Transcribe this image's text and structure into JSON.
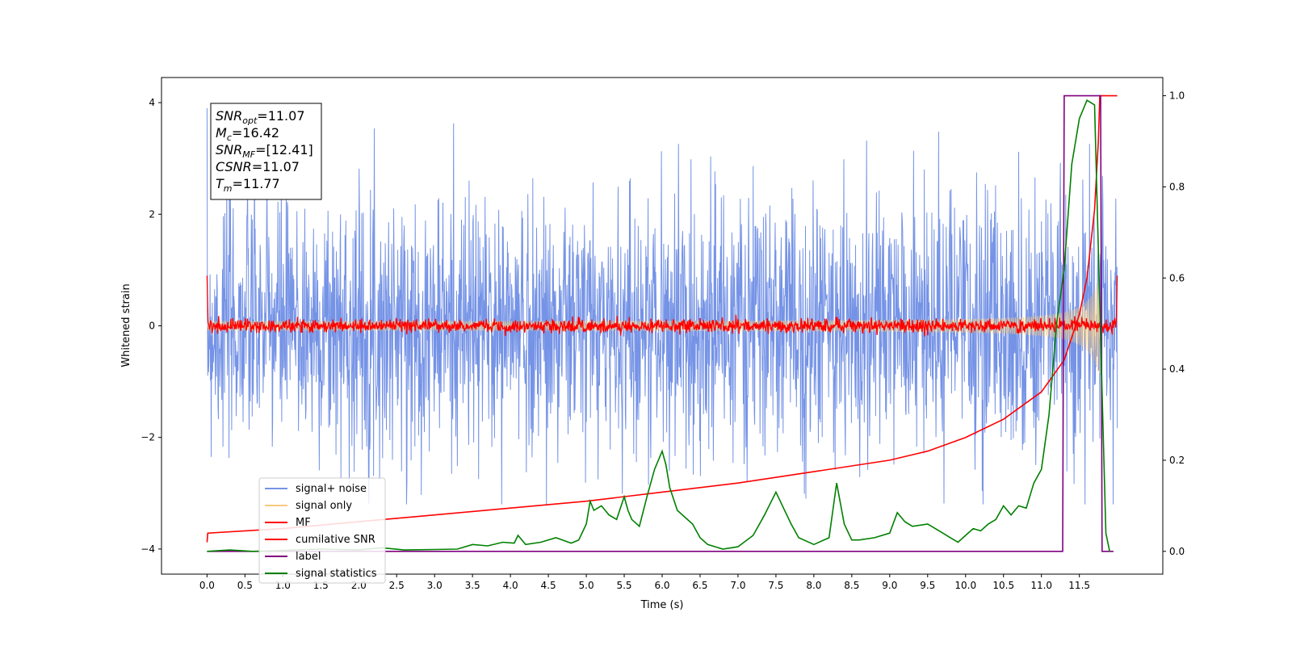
{
  "chart_data": {
    "type": "line",
    "title": "",
    "xlabel": "Time (s)",
    "ylabel": "Whitened strain",
    "xlim": [
      -0.6,
      12.6
    ],
    "ylim": [
      -4.45,
      4.45
    ],
    "y2lim": [
      -0.05,
      1.04
    ],
    "xticks": [
      0.0,
      0.5,
      1.0,
      1.5,
      2.0,
      2.5,
      3.0,
      3.5,
      4.0,
      4.5,
      5.0,
      5.5,
      6.0,
      6.5,
      7.0,
      7.5,
      8.0,
      8.5,
      9.0,
      9.5,
      10.0,
      10.5,
      11.0,
      11.5
    ],
    "xtick_labels": [
      "0.0",
      "0.5",
      "1.0",
      "1.5",
      "2.0",
      "2.5",
      "3.0",
      "3.5",
      "4.0",
      "4.5",
      "5.0",
      "5.5",
      "6.0",
      "6.5",
      "7.0",
      "7.5",
      "8.0",
      "8.5",
      "9.0",
      "9.5",
      "10.0",
      "10.5",
      "11.0",
      "11.5"
    ],
    "yticks": [
      -4,
      -2,
      0,
      2,
      4
    ],
    "ytick_labels": [
      "−4",
      "−2",
      "0",
      "2",
      "4"
    ],
    "y2ticks": [
      0.0,
      0.2,
      0.4,
      0.6,
      0.8,
      1.0
    ],
    "y2tick_labels": [
      "0.0",
      "0.2",
      "0.4",
      "0.6",
      "0.8",
      "1.0"
    ],
    "grid": false,
    "legend_position": "lower-left",
    "annotation_lines": [
      {
        "sym": "SNR",
        "sub": "opt",
        "value": "=11.07"
      },
      {
        "sym": "M",
        "sub": "c",
        "value": "=16.42"
      },
      {
        "sym": "SNR",
        "sub": "MF",
        "value": "=[12.41]"
      },
      {
        "sym": "CSNR",
        "sub": "",
        "value": "=11.07"
      },
      {
        "sym": "T",
        "sub": "m",
        "value": "=11.77"
      }
    ],
    "series": [
      {
        "name": "signal+ noise",
        "axis": "left",
        "color": "#7593e6",
        "kind": "noise-band",
        "x_range": [
          0.0,
          12.0
        ],
        "envelope": [
          -3.2,
          3.9
        ]
      },
      {
        "name": "signal only",
        "axis": "left",
        "color": "#f7c97e",
        "kind": "chirp",
        "x_range": [
          0.0,
          11.77
        ]
      },
      {
        "name": "MF",
        "axis": "left",
        "color": "#ff0000",
        "kind": "noise-band",
        "x_range": [
          0.0,
          12.0
        ],
        "envelope": [
          -0.15,
          0.2
        ]
      },
      {
        "name": "cumilative SNR",
        "axis": "right",
        "color": "#ff0000",
        "x": [
          0.0,
          0.01,
          1.0,
          2.0,
          3.0,
          4.0,
          5.0,
          6.0,
          7.0,
          8.0,
          9.0,
          9.5,
          10.0,
          10.5,
          11.0,
          11.3,
          11.5,
          11.6,
          11.7,
          11.75,
          11.77,
          11.8,
          12.0
        ],
        "y": [
          0.02,
          0.04,
          0.05,
          0.065,
          0.08,
          0.095,
          0.11,
          0.13,
          0.15,
          0.175,
          0.2,
          0.22,
          0.25,
          0.29,
          0.35,
          0.42,
          0.52,
          0.6,
          0.75,
          0.9,
          1.0,
          1.0,
          1.0
        ]
      },
      {
        "name": "label",
        "axis": "right",
        "color": "#800080",
        "x": [
          0.0,
          11.28,
          11.3,
          11.78,
          11.8,
          11.95
        ],
        "y": [
          0.0,
          0.0,
          1.0,
          1.0,
          0.0,
          0.0
        ]
      },
      {
        "name": "signal statistics",
        "axis": "right",
        "color": "#008000",
        "x": [
          0.0,
          0.3,
          0.6,
          1.0,
          1.5,
          2.0,
          2.3,
          2.6,
          3.0,
          3.3,
          3.5,
          3.7,
          3.9,
          4.05,
          4.1,
          4.2,
          4.4,
          4.6,
          4.8,
          4.9,
          5.0,
          5.05,
          5.1,
          5.2,
          5.3,
          5.4,
          5.5,
          5.55,
          5.6,
          5.7,
          5.8,
          5.9,
          6.0,
          6.05,
          6.1,
          6.2,
          6.3,
          6.4,
          6.5,
          6.6,
          6.8,
          7.0,
          7.2,
          7.35,
          7.5,
          7.6,
          7.7,
          7.8,
          8.0,
          8.2,
          8.3,
          8.4,
          8.5,
          8.6,
          8.8,
          9.0,
          9.1,
          9.2,
          9.3,
          9.5,
          9.7,
          9.8,
          9.9,
          10.0,
          10.1,
          10.2,
          10.3,
          10.4,
          10.5,
          10.6,
          10.7,
          10.8,
          10.9,
          11.0,
          11.1,
          11.2,
          11.3,
          11.4,
          11.5,
          11.6,
          11.7,
          11.8,
          11.85,
          11.9
        ],
        "y": [
          0.0,
          0.003,
          0.0,
          0.002,
          0.005,
          0.003,
          0.008,
          0.003,
          0.004,
          0.005,
          0.015,
          0.012,
          0.02,
          0.018,
          0.035,
          0.015,
          0.02,
          0.03,
          0.018,
          0.025,
          0.06,
          0.11,
          0.09,
          0.1,
          0.08,
          0.07,
          0.12,
          0.09,
          0.07,
          0.055,
          0.12,
          0.18,
          0.22,
          0.19,
          0.14,
          0.09,
          0.075,
          0.06,
          0.03,
          0.015,
          0.005,
          0.01,
          0.035,
          0.08,
          0.13,
          0.095,
          0.06,
          0.03,
          0.015,
          0.03,
          0.15,
          0.06,
          0.025,
          0.025,
          0.03,
          0.04,
          0.085,
          0.065,
          0.055,
          0.06,
          0.04,
          0.03,
          0.02,
          0.035,
          0.05,
          0.045,
          0.06,
          0.07,
          0.1,
          0.08,
          0.1,
          0.095,
          0.15,
          0.18,
          0.3,
          0.5,
          0.62,
          0.85,
          0.95,
          0.99,
          0.98,
          0.35,
          0.04,
          0.0
        ]
      }
    ]
  }
}
